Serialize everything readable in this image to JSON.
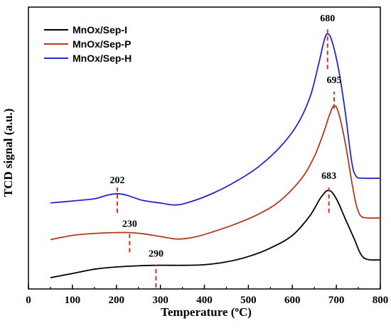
{
  "chart_data": {
    "type": "line",
    "xlabel_main": "Temperature (",
    "xlabel_sup": "o",
    "xlabel_end": "C)",
    "ylabel": "TCD signal (a.u.)",
    "xlim": [
      0,
      800
    ],
    "ylim": [
      0,
      100
    ],
    "xticks": [
      0,
      100,
      200,
      300,
      400,
      500,
      600,
      700,
      800
    ],
    "grid": false,
    "legend_position": "top-left",
    "series": [
      {
        "name": "MnOx/Sep-I",
        "color": "#000000",
        "points": [
          [
            50,
            4
          ],
          [
            100,
            5.5
          ],
          [
            150,
            7
          ],
          [
            200,
            7.8
          ],
          [
            250,
            8.2
          ],
          [
            290,
            8.4
          ],
          [
            350,
            8.4
          ],
          [
            400,
            8.6
          ],
          [
            450,
            9.6
          ],
          [
            500,
            11.5
          ],
          [
            550,
            14.5
          ],
          [
            600,
            19
          ],
          [
            640,
            26
          ],
          [
            665,
            32.5
          ],
          [
            683,
            35
          ],
          [
            700,
            32
          ],
          [
            720,
            25
          ],
          [
            740,
            18
          ],
          [
            755,
            12.5
          ],
          [
            770,
            10.5
          ],
          [
            800,
            10.3
          ]
        ]
      },
      {
        "name": "MnOx/Sep-P",
        "color": "#b23a1e",
        "points": [
          [
            50,
            17.5
          ],
          [
            100,
            19
          ],
          [
            150,
            19.7
          ],
          [
            200,
            20
          ],
          [
            230,
            20
          ],
          [
            260,
            19.6
          ],
          [
            300,
            18.6
          ],
          [
            340,
            17.7
          ],
          [
            380,
            18.5
          ],
          [
            420,
            20.3
          ],
          [
            470,
            23
          ],
          [
            520,
            26.3
          ],
          [
            570,
            31
          ],
          [
            620,
            39
          ],
          [
            650,
            47
          ],
          [
            670,
            55
          ],
          [
            685,
            62
          ],
          [
            695,
            65
          ],
          [
            705,
            62.5
          ],
          [
            720,
            52
          ],
          [
            735,
            38
          ],
          [
            745,
            30
          ],
          [
            755,
            26
          ],
          [
            770,
            25.2
          ],
          [
            800,
            25.2
          ]
        ]
      },
      {
        "name": "MnOx/Sep-H",
        "color": "#2626c9",
        "points": [
          [
            50,
            30.5
          ],
          [
            100,
            31.2
          ],
          [
            150,
            32
          ],
          [
            180,
            33.3
          ],
          [
            202,
            33.8
          ],
          [
            225,
            33.2
          ],
          [
            260,
            31.4
          ],
          [
            300,
            30.5
          ],
          [
            335,
            29.8
          ],
          [
            370,
            31
          ],
          [
            420,
            34
          ],
          [
            470,
            38
          ],
          [
            520,
            43
          ],
          [
            570,
            50
          ],
          [
            610,
            58
          ],
          [
            640,
            68
          ],
          [
            660,
            80
          ],
          [
            672,
            88
          ],
          [
            680,
            90.5
          ],
          [
            690,
            88
          ],
          [
            705,
            78
          ],
          [
            720,
            63
          ],
          [
            735,
            45
          ],
          [
            745,
            40
          ],
          [
            760,
            39.3
          ],
          [
            800,
            39.3
          ]
        ]
      }
    ],
    "annotations": [
      {
        "label": "680",
        "x": 680,
        "y_from": 78,
        "y_to": 92.5,
        "text_y": 95
      },
      {
        "label": "695",
        "x": 695,
        "y_from": 64,
        "y_to": 70,
        "text_y": 73
      },
      {
        "label": "683",
        "x": 683,
        "y_from": 27,
        "y_to": 36,
        "text_y": 39
      },
      {
        "label": "202",
        "x": 202,
        "y_from": 27,
        "y_to": 36,
        "text_y": 37.5
      },
      {
        "label": "230",
        "x": 230,
        "y_from": 13,
        "y_to": 20.5,
        "text_y": 22
      },
      {
        "label": "290",
        "x": 290,
        "y_from": 0.5,
        "y_to": 8.5,
        "text_y": 11.5
      }
    ]
  }
}
